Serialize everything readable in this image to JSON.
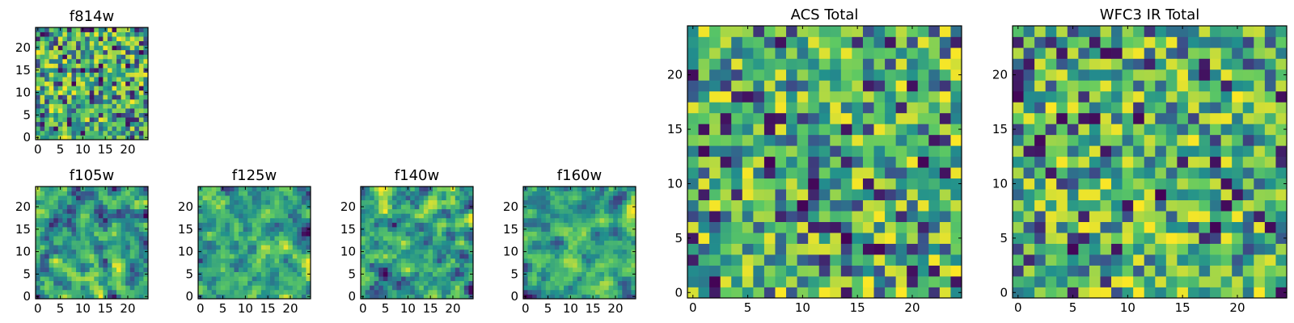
{
  "colors": {
    "colormap": [
      "#440154",
      "#3b528b",
      "#21908d",
      "#5dc963",
      "#fde725"
    ],
    "frame": "#000000",
    "background": "#ffffff"
  },
  "chart_data": [
    {
      "type": "heatmap",
      "title": "f814w",
      "grid_size": [
        25,
        25
      ],
      "xlim": [
        -0.5,
        24.5
      ],
      "ylim": [
        -0.5,
        24.5
      ],
      "xticks": [
        0,
        5,
        10,
        15,
        20
      ],
      "yticks": [
        0,
        5,
        10,
        15,
        20
      ],
      "xlabel": "",
      "ylabel": "",
      "colormap": "viridis",
      "value_range": [
        0,
        1
      ],
      "pixel_values": "random noise (seeded)",
      "seed": 814,
      "smooth": 0
    },
    {
      "type": "heatmap",
      "title": "f105w",
      "grid_size": [
        25,
        25
      ],
      "xlim": [
        -0.5,
        24.5
      ],
      "ylim": [
        -0.5,
        24.5
      ],
      "xticks": [
        0,
        5,
        10,
        15,
        20
      ],
      "yticks": [
        0,
        5,
        10,
        15,
        20
      ],
      "xlabel": "",
      "ylabel": "",
      "colormap": "viridis",
      "value_range": [
        0,
        1
      ],
      "pixel_values": "smoothed random noise (seeded)",
      "seed": 105,
      "smooth": 1
    },
    {
      "type": "heatmap",
      "title": "f125w",
      "grid_size": [
        25,
        25
      ],
      "xlim": [
        -0.5,
        24.5
      ],
      "ylim": [
        -0.5,
        24.5
      ],
      "xticks": [
        0,
        5,
        10,
        15,
        20
      ],
      "yticks": [
        0,
        5,
        10,
        15,
        20
      ],
      "xlabel": "",
      "ylabel": "",
      "colormap": "viridis",
      "value_range": [
        0,
        1
      ],
      "pixel_values": "smoothed random noise (seeded)",
      "seed": 125,
      "smooth": 1
    },
    {
      "type": "heatmap",
      "title": "f140w",
      "grid_size": [
        25,
        25
      ],
      "xlim": [
        -0.5,
        24.5
      ],
      "ylim": [
        -0.5,
        24.5
      ],
      "xticks": [
        0,
        5,
        10,
        15,
        20
      ],
      "yticks": [
        0,
        5,
        10,
        15,
        20
      ],
      "xlabel": "",
      "ylabel": "",
      "colormap": "viridis",
      "value_range": [
        0,
        1
      ],
      "pixel_values": "smoothed random noise (seeded)",
      "seed": 140,
      "smooth": 1
    },
    {
      "type": "heatmap",
      "title": "f160w",
      "grid_size": [
        25,
        25
      ],
      "xlim": [
        -0.5,
        24.5
      ],
      "ylim": [
        -0.5,
        24.5
      ],
      "xticks": [
        0,
        5,
        10,
        15,
        20
      ],
      "yticks": [
        0,
        5,
        10,
        15,
        20
      ],
      "xlabel": "",
      "ylabel": "",
      "colormap": "viridis",
      "value_range": [
        0,
        1
      ],
      "pixel_values": "smoothed random noise (seeded)",
      "seed": 160,
      "smooth": 1
    },
    {
      "type": "heatmap",
      "title": "ACS Total",
      "grid_size": [
        25,
        25
      ],
      "xlim": [
        -0.5,
        24.5
      ],
      "ylim": [
        -0.5,
        24.5
      ],
      "xticks": [
        0,
        5,
        10,
        15,
        20
      ],
      "yticks": [
        0,
        5,
        10,
        15,
        20
      ],
      "xlabel": "",
      "ylabel": "",
      "colormap": "viridis",
      "value_range": [
        0,
        1
      ],
      "pixel_values": "random noise (seeded)",
      "seed": 7,
      "smooth": 0
    },
    {
      "type": "heatmap",
      "title": "WFC3 IR Total",
      "grid_size": [
        25,
        25
      ],
      "xlim": [
        -0.5,
        24.5
      ],
      "ylim": [
        -0.5,
        24.5
      ],
      "xticks": [
        0,
        5,
        10,
        15,
        20
      ],
      "yticks": [
        0,
        5,
        10,
        15,
        20
      ],
      "xlabel": "",
      "ylabel": "",
      "colormap": "viridis",
      "value_range": [
        0,
        1
      ],
      "pixel_values": "random noise (seeded)",
      "seed": 31,
      "smooth": 0
    }
  ]
}
